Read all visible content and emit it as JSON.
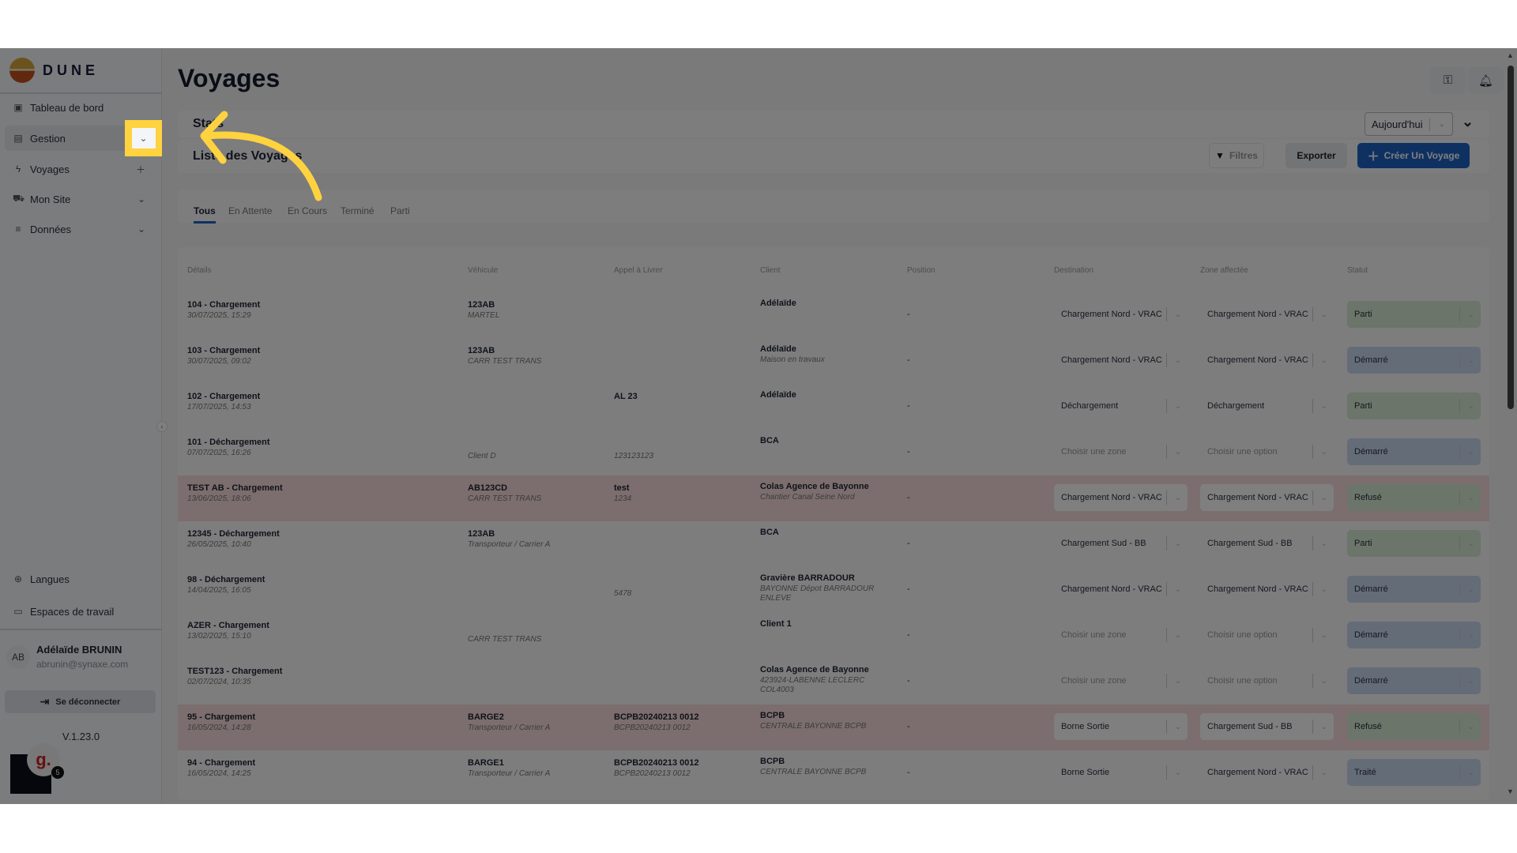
{
  "sidebar": {
    "brand": "DUNE",
    "items": [
      {
        "label": "Tableau de bord",
        "icon": "dashboard-icon"
      },
      {
        "label": "Gestion",
        "icon": "document-icon"
      },
      {
        "label": "Voyages",
        "icon": "bolt-icon"
      },
      {
        "label": "Mon Site",
        "icon": "truck-icon"
      },
      {
        "label": "Données",
        "icon": "list-icon"
      }
    ],
    "bottom_items": [
      {
        "label": "Langues",
        "icon": "globe-icon"
      },
      {
        "label": "Espaces de travail",
        "icon": "workspace-icon"
      }
    ],
    "user": {
      "initials": "AB",
      "name": "Adélaïde BRUNIN",
      "email": "abrunin@synaxe.com"
    },
    "logout_label": "Se déconnecter",
    "version": "V.1.23.0",
    "widget_letter": "g.",
    "widget_badge": "5"
  },
  "header": {
    "title": "Voyages"
  },
  "stats": {
    "title": "Stats",
    "period": "Aujourd'hui"
  },
  "list": {
    "title": "Liste des Voyages",
    "filters_label": "Filtres",
    "export_label": "Exporter",
    "create_label": "Créer Un Voyage",
    "tabs": [
      "Tous",
      "En Attente",
      "En Cours",
      "Terminé",
      "Parti"
    ],
    "active_tab": "Tous"
  },
  "table": {
    "columns": [
      "Détails",
      "Véhicule",
      "Appel à Livrer",
      "Client",
      "Position",
      "Destination",
      "Zone affectée",
      "Statut"
    ],
    "rows": [
      {
        "title": "104 - Chargement",
        "date": "30/07/2025, 15:29",
        "vehicle": "123AB",
        "carrier": "MARTEL",
        "call": "",
        "call_sub": "",
        "client": "Adélaïde",
        "client_sub": "",
        "position": "-",
        "destination": "Chargement Nord - VRAC",
        "zone": "Chargement Nord - VRAC",
        "status": "Parti",
        "refused": false
      },
      {
        "title": "103 - Chargement",
        "date": "30/07/2025, 09:02",
        "vehicle": "123AB",
        "carrier": "CARR TEST TRANS",
        "call": "",
        "call_sub": "",
        "client": "Adélaïde",
        "client_sub": "Maison en travaux",
        "position": "-",
        "destination": "Chargement Nord - VRAC",
        "zone": "Chargement Nord - VRAC",
        "status": "Démarré",
        "refused": false
      },
      {
        "title": "102 - Chargement",
        "date": "17/07/2025, 14:53",
        "vehicle": "",
        "carrier": "",
        "call": "AL 23",
        "call_sub": "",
        "client": "Adélaïde",
        "client_sub": "",
        "position": "-",
        "destination": "Déchargement",
        "zone": "Déchargement",
        "status": "Parti",
        "refused": false
      },
      {
        "title": "101 - Déchargement",
        "date": "07/07/2025, 16:26",
        "vehicle": "",
        "carrier": "Client D",
        "call": "",
        "call_sub": "123123123",
        "client": "BCA",
        "client_sub": "",
        "position": "-",
        "destination": "",
        "zone": "",
        "status": "Démarré",
        "refused": false
      },
      {
        "title": "TEST AB - Chargement",
        "date": "13/06/2025, 18:06",
        "vehicle": "AB123CD",
        "carrier": "CARR TEST TRANS",
        "call": "test",
        "call_sub": "1234",
        "client": "Colas Agence de Bayonne",
        "client_sub": "Chantier Canal Seine Nord",
        "position": "-",
        "destination": "Chargement Nord - VRAC",
        "zone": "Chargement Nord - VRAC",
        "status": "Refusé",
        "refused": true
      },
      {
        "title": "12345 - Déchargement",
        "date": "26/05/2025, 10:40",
        "vehicle": "123AB",
        "carrier": "Transporteur / Carrier A",
        "call": "",
        "call_sub": "",
        "client": "BCA",
        "client_sub": "",
        "position": "-",
        "destination": "Chargement Sud - BB",
        "zone": "Chargement Sud - BB",
        "status": "Parti",
        "refused": false
      },
      {
        "title": "98 - Déchargement",
        "date": "14/04/2025, 16:05",
        "vehicle": "",
        "carrier": "",
        "call": "",
        "call_sub": "5478",
        "client": "Gravière BARRADOUR",
        "client_sub": "BAYONNE Dépot BARRADOUR ENLEVE",
        "position": "-",
        "destination": "Chargement Nord - VRAC",
        "zone": "Chargement Nord - VRAC",
        "status": "Démarré",
        "refused": false
      },
      {
        "title": "AZER - Chargement",
        "date": "13/02/2025, 15:10",
        "vehicle": "",
        "carrier": "CARR TEST TRANS",
        "call": "",
        "call_sub": "",
        "client": "Client 1",
        "client_sub": "",
        "position": "-",
        "destination": "",
        "zone": "",
        "status": "Démarré",
        "refused": false
      },
      {
        "title": "TEST123 - Chargement",
        "date": "02/07/2024, 10:35",
        "vehicle": "",
        "carrier": "",
        "call": "",
        "call_sub": "",
        "client": "Colas Agence de Bayonne",
        "client_sub": "423924-LABENNE LECLERC COL4003",
        "position": "-",
        "destination": "",
        "zone": "",
        "status": "Démarré",
        "refused": false
      },
      {
        "title": "95 - Chargement",
        "date": "16/05/2024, 14:28",
        "vehicle": "BARGE2",
        "carrier": "Transporteur / Carrier A",
        "call": "BCPB20240213 0012",
        "call_sub": "BCPB20240213 0012",
        "client": "BCPB",
        "client_sub": "CENTRALE BAYONNE BCPB",
        "position": "-",
        "destination": "Borne Sortie",
        "zone": "Chargement Sud - BB",
        "status": "Refusé",
        "refused": true
      },
      {
        "title": "94 - Chargement",
        "date": "16/05/2024, 14:25",
        "vehicle": "BARGE1",
        "carrier": "Transporteur / Carrier A",
        "call": "BCPB20240213 0012",
        "call_sub": "BCPB20240213 0012",
        "client": "BCPB",
        "client_sub": "CENTRALE BAYONNE BCPB",
        "position": "-",
        "destination": "Borne Sortie",
        "zone": "Chargement Nord - VRAC",
        "status": "Traité",
        "refused": false
      }
    ],
    "destination_placeholder": "Choisir une zone",
    "zone_placeholder": "Choisir une option"
  },
  "colors": {
    "primary": "#1e63c4",
    "highlight": "#ffd23f",
    "row_refused": "#f8dcdc",
    "status": {
      "Parti": "#d7ebd3",
      "Refusé": "#d7ebd3",
      "Démarré": "#c9d8f1",
      "Traité": "#c9d8f1"
    }
  }
}
